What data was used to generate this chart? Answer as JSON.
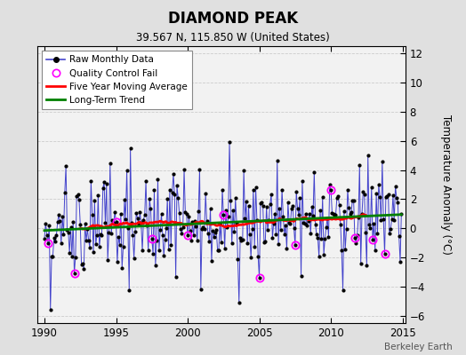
{
  "title": "DIAMOND PEAK",
  "subtitle": "39.567 N, 115.850 W (United States)",
  "ylabel": "Temperature Anomaly (°C)",
  "watermark": "Berkeley Earth",
  "xlim": [
    1989.5,
    2015.2
  ],
  "ylim": [
    -6.5,
    12.5
  ],
  "yticks": [
    -6,
    -4,
    -2,
    0,
    2,
    4,
    6,
    8,
    10,
    12
  ],
  "xticks": [
    1990,
    1995,
    2000,
    2005,
    2010,
    2015
  ],
  "bg_color": "#e0e0e0",
  "plot_bg": "#f2f2f2",
  "raw_line_color": "#4444cc",
  "raw_marker_color": "black",
  "qc_fail_color": "magenta",
  "moving_avg_color": "red",
  "trend_color": "green",
  "seed": 15
}
